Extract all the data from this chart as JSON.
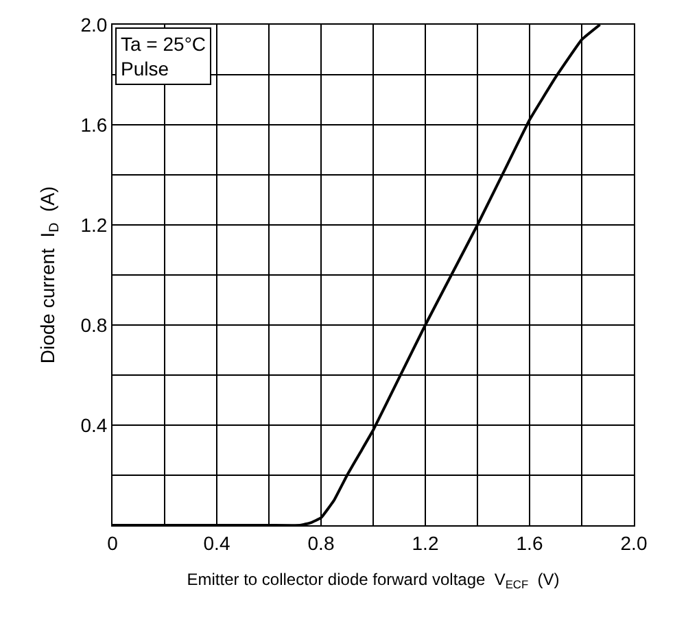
{
  "chart_data": {
    "type": "line",
    "xlabel": "Emitter to collector diode forward voltage  V$_{ECF}$  (V)",
    "ylabel": "Diode current  I$_{D}$  (A)",
    "annotations": [
      "Ta = 25°C",
      "Pulse"
    ],
    "xlim": [
      0,
      2.0
    ],
    "ylim": [
      0,
      2.0
    ],
    "xticks": [
      0,
      {
        "value": 0.2,
        "label": null
      },
      0.4,
      {
        "value": 0.6,
        "label": null
      },
      0.8,
      {
        "value": 1.0,
        "label": null
      },
      1.2,
      {
        "value": 1.4,
        "label": null
      },
      1.6,
      {
        "value": 1.8,
        "label": null
      },
      "2.0"
    ],
    "yticks": [
      {
        "value": 0,
        "label": null
      },
      {
        "value": 0.2,
        "label": null
      },
      0.4,
      {
        "value": 0.6,
        "label": null
      },
      0.8,
      {
        "value": 1.0,
        "label": null
      },
      1.2,
      {
        "value": 1.4,
        "label": null
      },
      1.6,
      {
        "value": 1.8,
        "label": null
      },
      {
        "value": 2.0,
        "label": "2.0"
      }
    ],
    "grid": true,
    "marker": "none",
    "line_style": "solid",
    "series": [
      {
        "color": "#000000",
        "x": [
          0,
          0.3,
          0.6,
          0.72,
          0.76,
          0.8,
          0.85,
          0.9,
          0.95,
          1.0,
          1.1,
          1.2,
          1.3,
          1.4,
          1.5,
          1.6,
          1.7,
          1.8,
          1.87
        ],
        "values": [
          0,
          0,
          0,
          0,
          0.01,
          0.03,
          0.1,
          0.2,
          0.29,
          0.38,
          0.59,
          0.8,
          1.0,
          1.2,
          1.41,
          1.62,
          1.79,
          1.94,
          2.0
        ]
      }
    ]
  }
}
